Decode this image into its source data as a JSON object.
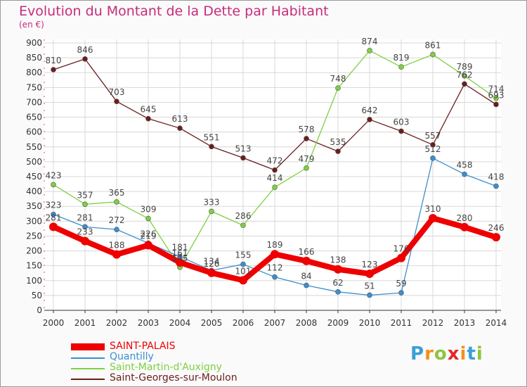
{
  "title": "Evolution du Montant de la Dette par Habitant",
  "subtitle": "(en €)",
  "logo": {
    "text": "Proxiti",
    "letter_colors": [
      "#3b9fd8",
      "#f0921e",
      "#8cc63f",
      "#e52628",
      "#f0921e",
      "#3b9fd8",
      "#8cc63f"
    ]
  },
  "chart_data": {
    "type": "line",
    "categories": [
      "2000",
      "2001",
      "2002",
      "2003",
      "2004",
      "2005",
      "2006",
      "2007",
      "2008",
      "2009",
      "2010",
      "2011",
      "2012",
      "2013",
      "2014"
    ],
    "ylim": [
      0,
      900
    ],
    "yticks": [
      0,
      50,
      100,
      150,
      200,
      250,
      300,
      350,
      400,
      450,
      500,
      550,
      600,
      650,
      700,
      750,
      800,
      850,
      900
    ],
    "grid": true,
    "legend_position": "bottom-left",
    "series": [
      {
        "name": "SAINT-PALAIS",
        "color": "#ee0000",
        "values": [
          281,
          233,
          188,
          219,
          161,
          126,
          101,
          189,
          166,
          138,
          123,
          176,
          310,
          280,
          246
        ]
      },
      {
        "name": "Quantilly",
        "color": "#3b8fd0",
        "values": [
          323,
          281,
          272,
          226,
          181,
          134,
          155,
          112,
          84,
          62,
          51,
          59,
          512,
          458,
          418
        ]
      },
      {
        "name": "Saint-Martin-d'Auxigny",
        "color": "#7ed040",
        "values": [
          423,
          357,
          365,
          309,
          145,
          333,
          286,
          414,
          479,
          748,
          874,
          819,
          861,
          789,
          714
        ]
      },
      {
        "name": "Saint-Georges-sur-Moulon",
        "color": "#6b1d1d",
        "values": [
          810,
          846,
          703,
          645,
          613,
          551,
          513,
          472,
          578,
          535,
          642,
          603,
          557,
          762,
          693
        ]
      }
    ]
  }
}
